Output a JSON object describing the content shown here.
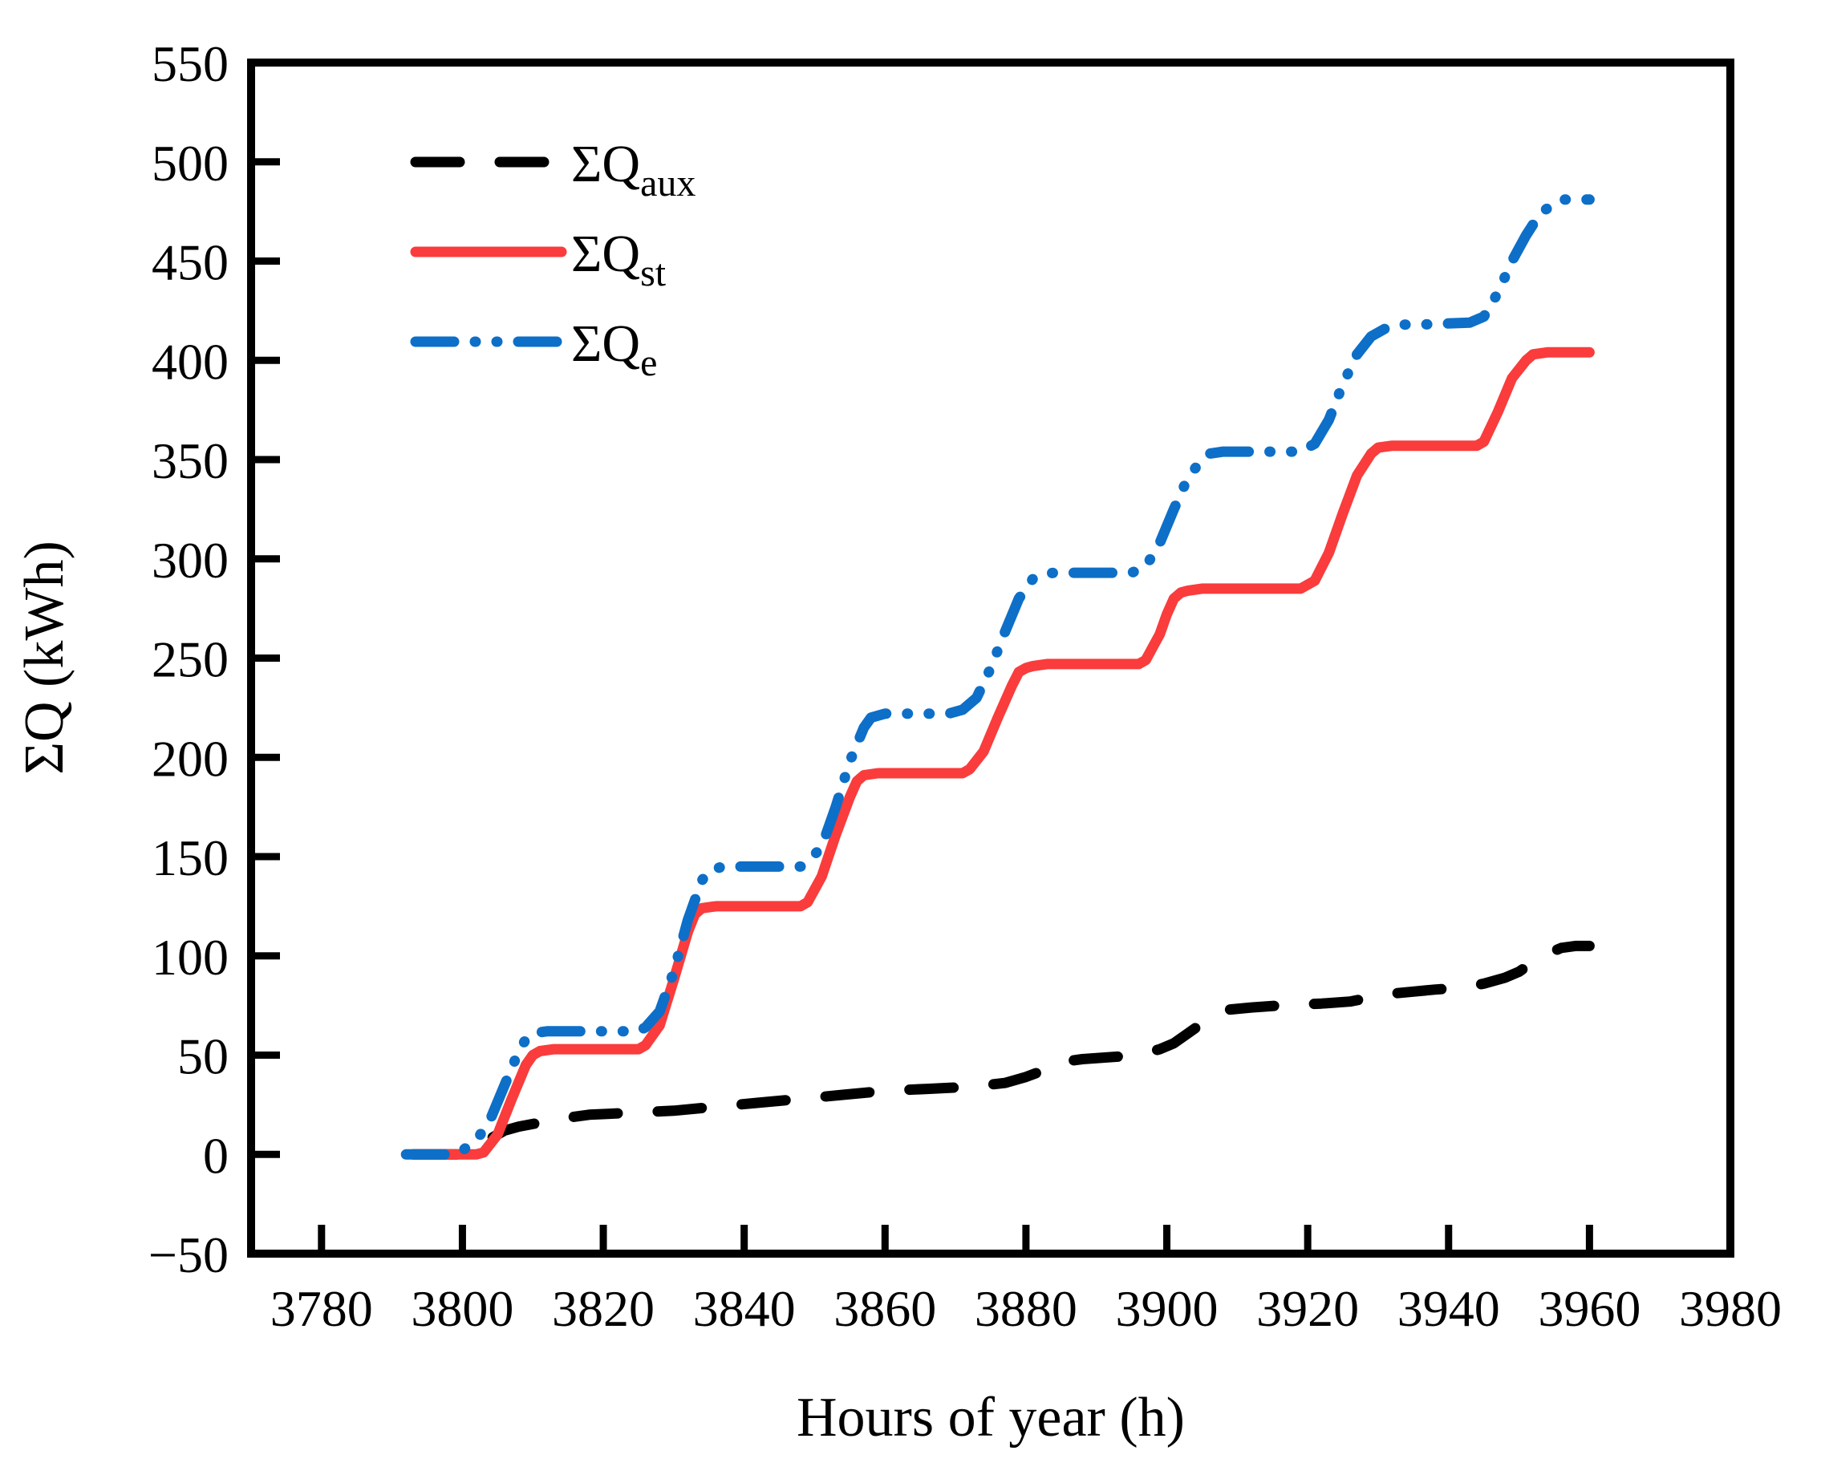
{
  "chart_data": {
    "type": "line",
    "title": "",
    "xlabel": "Hours of year (h)",
    "ylabel": "ΣQ (kWh)",
    "xlim": [
      3770,
      3980
    ],
    "ylim": [
      -50,
      550
    ],
    "x_ticks": [
      3780,
      3800,
      3820,
      3840,
      3860,
      3880,
      3900,
      3920,
      3940,
      3960,
      3980
    ],
    "x_tick_labels": [
      "3780",
      "3800",
      "3820",
      "3840",
      "3860",
      "3880",
      "3900",
      "3920",
      "3940",
      "3960",
      "3980"
    ],
    "y_ticks": [
      550,
      500,
      450,
      400,
      350,
      300,
      250,
      200,
      150,
      100,
      50,
      0,
      -50
    ],
    "y_tick_labels": [
      "550",
      "500",
      "450",
      "400",
      "350",
      "300",
      "250",
      "200",
      "150",
      "100",
      "50",
      "0",
      "−50"
    ],
    "grid": false,
    "frame_color": "#000000",
    "background_color": "#ffffff",
    "legend": {
      "position": "upper-left-inside"
    },
    "series": [
      {
        "name": "ΣQaux",
        "legend_main": "ΣQ",
        "legend_sub": "aux",
        "color": "#000000",
        "line_style": "dashed",
        "points": [
          [
            3793,
            0
          ],
          [
            3800,
            0
          ],
          [
            3802,
            3
          ],
          [
            3804,
            8
          ],
          [
            3806,
            12
          ],
          [
            3808,
            14
          ],
          [
            3811,
            16
          ],
          [
            3814,
            18
          ],
          [
            3818,
            20
          ],
          [
            3824,
            21
          ],
          [
            3830,
            22
          ],
          [
            3836,
            24
          ],
          [
            3842,
            26
          ],
          [
            3848,
            28
          ],
          [
            3854,
            30
          ],
          [
            3860,
            32
          ],
          [
            3866,
            33
          ],
          [
            3872,
            34
          ],
          [
            3877,
            36
          ],
          [
            3880,
            39
          ],
          [
            3883,
            43
          ],
          [
            3886,
            47
          ],
          [
            3888,
            48
          ],
          [
            3892,
            49
          ],
          [
            3896,
            50
          ],
          [
            3899,
            53
          ],
          [
            3901,
            56
          ],
          [
            3903,
            61
          ],
          [
            3905,
            66
          ],
          [
            3907,
            71
          ],
          [
            3909,
            73
          ],
          [
            3912,
            74
          ],
          [
            3916,
            75
          ],
          [
            3922,
            76
          ],
          [
            3926,
            77
          ],
          [
            3929,
            79
          ],
          [
            3932,
            81
          ],
          [
            3935,
            82
          ],
          [
            3938,
            83
          ],
          [
            3942,
            84
          ],
          [
            3945,
            86
          ],
          [
            3948,
            89
          ],
          [
            3950,
            92
          ],
          [
            3952,
            97
          ],
          [
            3954,
            101
          ],
          [
            3956,
            104
          ],
          [
            3958,
            105
          ],
          [
            3960,
            105
          ]
        ]
      },
      {
        "name": "ΣQst",
        "legend_main": "ΣQ",
        "legend_sub": "st",
        "color": "#fa3c3c",
        "line_style": "solid",
        "points": [
          [
            3794,
            0
          ],
          [
            3802,
            0
          ],
          [
            3803,
            1
          ],
          [
            3805,
            10
          ],
          [
            3807,
            28
          ],
          [
            3809,
            45
          ],
          [
            3810,
            50
          ],
          [
            3811,
            52
          ],
          [
            3813,
            53
          ],
          [
            3825,
            53
          ],
          [
            3826,
            55
          ],
          [
            3828,
            65
          ],
          [
            3830,
            88
          ],
          [
            3832,
            112
          ],
          [
            3833,
            121
          ],
          [
            3834,
            124
          ],
          [
            3836,
            125
          ],
          [
            3848,
            125
          ],
          [
            3849,
            127
          ],
          [
            3851,
            140
          ],
          [
            3853,
            161
          ],
          [
            3855,
            180
          ],
          [
            3856,
            188
          ],
          [
            3857,
            191
          ],
          [
            3859,
            192
          ],
          [
            3871,
            192
          ],
          [
            3872,
            194
          ],
          [
            3874,
            203
          ],
          [
            3876,
            220
          ],
          [
            3878,
            236
          ],
          [
            3879,
            243
          ],
          [
            3880,
            245
          ],
          [
            3881,
            246
          ],
          [
            3883,
            247
          ],
          [
            3896,
            247
          ],
          [
            3897,
            249
          ],
          [
            3899,
            262
          ],
          [
            3900,
            272
          ],
          [
            3901,
            280
          ],
          [
            3902,
            283
          ],
          [
            3903,
            284
          ],
          [
            3905,
            285
          ],
          [
            3919,
            285
          ],
          [
            3921,
            289
          ],
          [
            3923,
            303
          ],
          [
            3925,
            323
          ],
          [
            3927,
            342
          ],
          [
            3929,
            353
          ],
          [
            3930,
            356
          ],
          [
            3932,
            357
          ],
          [
            3944,
            357
          ],
          [
            3945,
            359
          ],
          [
            3947,
            374
          ],
          [
            3949,
            391
          ],
          [
            3951,
            400
          ],
          [
            3952,
            403
          ],
          [
            3954,
            404
          ],
          [
            3960,
            404
          ]
        ]
      },
      {
        "name": "ΣQe",
        "legend_main": "ΣQ",
        "legend_sub": "e",
        "color": "#0d6fc8",
        "line_style": "dashdotdot",
        "points": [
          [
            3792,
            0
          ],
          [
            3798,
            0
          ],
          [
            3800,
            2
          ],
          [
            3802,
            7
          ],
          [
            3804,
            18
          ],
          [
            3806,
            35
          ],
          [
            3808,
            52
          ],
          [
            3809,
            58
          ],
          [
            3810,
            61
          ],
          [
            3812,
            62
          ],
          [
            3825,
            62
          ],
          [
            3826,
            64
          ],
          [
            3828,
            72
          ],
          [
            3830,
            92
          ],
          [
            3832,
            118
          ],
          [
            3834,
            138
          ],
          [
            3835,
            143
          ],
          [
            3837,
            145
          ],
          [
            3848,
            145
          ],
          [
            3849,
            147
          ],
          [
            3851,
            155
          ],
          [
            3853,
            175
          ],
          [
            3855,
            198
          ],
          [
            3857,
            215
          ],
          [
            3858,
            220
          ],
          [
            3860,
            222
          ],
          [
            3869,
            222
          ],
          [
            3871,
            224
          ],
          [
            3873,
            230
          ],
          [
            3875,
            245
          ],
          [
            3877,
            263
          ],
          [
            3879,
            280
          ],
          [
            3881,
            290
          ],
          [
            3882,
            292
          ],
          [
            3884,
            293
          ],
          [
            3895,
            293
          ],
          [
            3897,
            296
          ],
          [
            3899,
            308
          ],
          [
            3901,
            325
          ],
          [
            3903,
            341
          ],
          [
            3905,
            350
          ],
          [
            3906,
            353
          ],
          [
            3908,
            354
          ],
          [
            3919,
            354
          ],
          [
            3921,
            358
          ],
          [
            3923,
            370
          ],
          [
            3925,
            388
          ],
          [
            3927,
            403
          ],
          [
            3929,
            412
          ],
          [
            3931,
            416
          ],
          [
            3933,
            418
          ],
          [
            3936,
            418
          ],
          [
            3943,
            419
          ],
          [
            3945,
            422
          ],
          [
            3947,
            434
          ],
          [
            3949,
            450
          ],
          [
            3951,
            463
          ],
          [
            3953,
            474
          ],
          [
            3955,
            479
          ],
          [
            3956,
            481
          ],
          [
            3960,
            481
          ]
        ]
      }
    ]
  }
}
